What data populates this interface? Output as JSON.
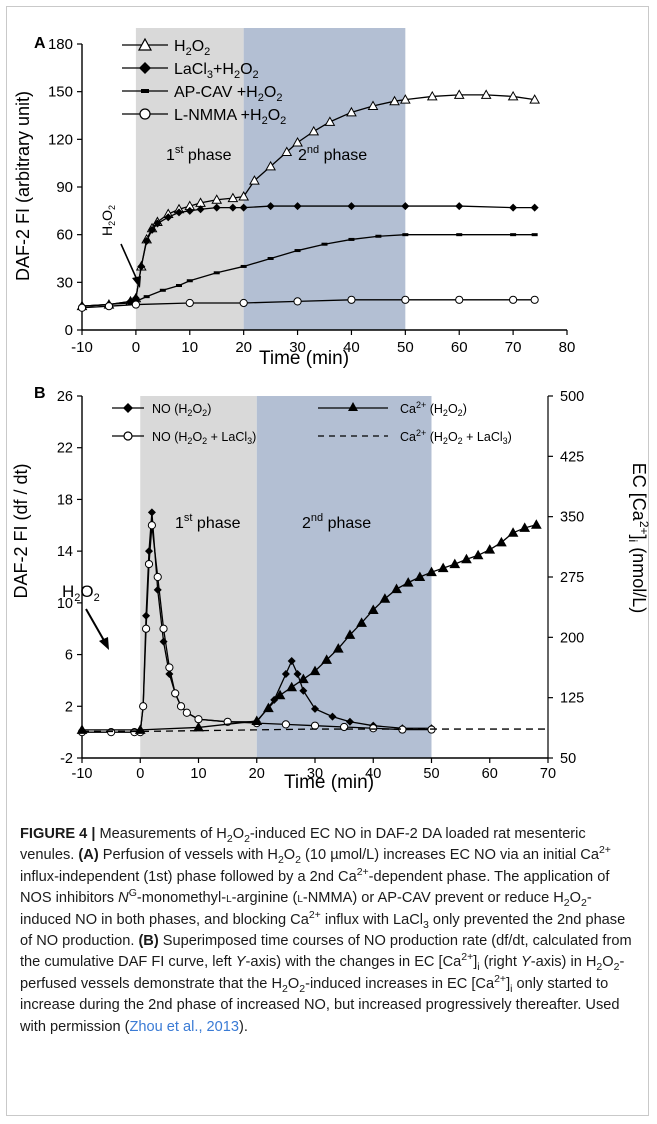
{
  "figure": {
    "panel_a": {
      "label": "A",
      "ylabel": "DAF-2 FI (arbitrary unit)",
      "xlabel": "Time (min)",
      "arrow_label": "H2O2",
      "phase1_label": "1st phase",
      "phase2_label": "2nd phase",
      "legend": [
        "H2O2",
        "LaCl3+H2O2",
        "AP-CAV +H2O2",
        "L-NMMA +H2O2"
      ]
    },
    "panel_b": {
      "label": "B",
      "ylabel_left": "DAF-2 FI (df / dt)",
      "ylabel_right": "EC [Ca2+]i (nmol/L)",
      "xlabel": "Time (min)",
      "arrow_label": "H2O2",
      "phase1_label": "1st phase",
      "phase2_label": "2nd phase",
      "legend": [
        "NO (H2O2)",
        "NO (H2O2 + LaCl3)",
        "Ca2+ (H2O2)",
        "Ca2+ (H2O2 + LaCl3)"
      ]
    }
  },
  "chart_data": [
    {
      "type": "line",
      "panel": "A",
      "title": "",
      "xlabel": "Time (min)",
      "ylabel": "DAF-2 FI (arbitrary unit)",
      "xlim": [
        -10,
        80
      ],
      "ylim": [
        0,
        180
      ],
      "xticks": [
        -10,
        0,
        10,
        20,
        30,
        40,
        50,
        60,
        70,
        80
      ],
      "yticks": [
        0,
        30,
        60,
        90,
        120,
        150,
        180
      ],
      "shaded_regions": [
        {
          "label": "1st phase",
          "from": 0,
          "to": 20,
          "color": "#d9d9d9"
        },
        {
          "label": "2nd phase",
          "from": 20,
          "to": 50,
          "color": "#b3bfd3"
        }
      ],
      "legend_position": "top-left",
      "series": [
        {
          "name": "H2O2",
          "marker": "triangle-open",
          "x": [
            -10,
            -5,
            -1,
            0,
            1,
            2,
            3,
            4,
            6,
            8,
            10,
            12,
            15,
            18,
            20,
            22,
            25,
            28,
            30,
            33,
            36,
            40,
            44,
            48,
            50,
            55,
            60,
            65,
            70,
            74
          ],
          "y": [
            15,
            16,
            18,
            20,
            40,
            57,
            64,
            68,
            73,
            76,
            78,
            80,
            82,
            83,
            84,
            94,
            103,
            112,
            118,
            125,
            131,
            137,
            141,
            144,
            145,
            147,
            148,
            148,
            147,
            145
          ]
        },
        {
          "name": "LaCl3+H2O2",
          "marker": "diamond-filled",
          "x": [
            -10,
            -5,
            -1,
            0,
            1,
            2,
            3,
            4,
            6,
            8,
            10,
            12,
            15,
            18,
            20,
            25,
            30,
            40,
            50,
            60,
            70,
            74
          ],
          "y": [
            15,
            16,
            18,
            20,
            40,
            56,
            63,
            67,
            71,
            74,
            75,
            76,
            77,
            77,
            77,
            78,
            78,
            78,
            78,
            78,
            77,
            77
          ]
        },
        {
          "name": "AP-CAV +H2O2",
          "marker": "dash",
          "x": [
            -10,
            -1,
            0,
            2,
            5,
            8,
            10,
            15,
            20,
            25,
            30,
            35,
            40,
            45,
            50,
            60,
            70,
            74
          ],
          "y": [
            15,
            17,
            18,
            21,
            25,
            28,
            31,
            36,
            40,
            45,
            50,
            54,
            57,
            59,
            60,
            60,
            60,
            60
          ]
        },
        {
          "name": "L-NMMA +H2O2",
          "marker": "circle-open",
          "x": [
            -10,
            -5,
            0,
            10,
            20,
            30,
            40,
            50,
            60,
            70,
            74
          ],
          "y": [
            14,
            15,
            16,
            17,
            17,
            18,
            19,
            19,
            19,
            19,
            19
          ]
        }
      ]
    },
    {
      "type": "line",
      "panel": "B",
      "title": "",
      "xlabel": "Time (min)",
      "ylabel": "DAF-2 FI (df / dt)",
      "ylabel_right": "EC [Ca2+]i (nmol/L)",
      "xlim": [
        -10,
        70
      ],
      "ylim": [
        -2,
        26
      ],
      "ylim_right": [
        50,
        500
      ],
      "xticks": [
        -10,
        0,
        10,
        20,
        30,
        40,
        50,
        60,
        70
      ],
      "yticks": [
        -2,
        2,
        6,
        10,
        14,
        18,
        22,
        26
      ],
      "yticks_right": [
        50,
        125,
        200,
        275,
        350,
        425,
        500
      ],
      "shaded_regions": [
        {
          "label": "1st phase",
          "from": 0,
          "to": 20,
          "color": "#d9d9d9"
        },
        {
          "label": "2nd phase",
          "from": 20,
          "to": 50,
          "color": "#b3bfd3"
        }
      ],
      "legend_position": "top",
      "series": [
        {
          "name": "NO (H2O2)",
          "axis": "left",
          "marker": "diamond-filled",
          "x": [
            -10,
            -5,
            -1,
            0,
            0.5,
            1,
            1.5,
            2,
            3,
            4,
            5,
            6,
            7,
            8,
            10,
            15,
            20,
            23,
            25,
            26,
            27,
            28,
            30,
            33,
            36,
            40,
            45,
            50
          ],
          "y": [
            0,
            0,
            0,
            0,
            2,
            9,
            14,
            17,
            11,
            7,
            4.5,
            3,
            2,
            1.5,
            1,
            0.8,
            0.8,
            2.5,
            4.5,
            5.5,
            4.5,
            3.2,
            1.8,
            1.2,
            0.8,
            0.5,
            0.3,
            0.3
          ]
        },
        {
          "name": "NO (H2O2 + LaCl3)",
          "axis": "left",
          "marker": "circle-open",
          "x": [
            -10,
            -5,
            -1,
            0,
            0.5,
            1,
            1.5,
            2,
            3,
            4,
            5,
            6,
            7,
            8,
            10,
            15,
            20,
            25,
            30,
            35,
            40,
            45,
            50
          ],
          "y": [
            0,
            0,
            0,
            0,
            2,
            8,
            13,
            16,
            12,
            8,
            5,
            3,
            2,
            1.5,
            1,
            0.8,
            0.7,
            0.6,
            0.5,
            0.4,
            0.3,
            0.2,
            0.2
          ]
        },
        {
          "name": "Ca2+ (H2O2)",
          "axis": "right",
          "marker": "triangle-filled",
          "x": [
            -10,
            0,
            10,
            20,
            22,
            24,
            26,
            28,
            30,
            32,
            34,
            36,
            38,
            40,
            42,
            44,
            46,
            48,
            50,
            52,
            54,
            56,
            58,
            60,
            62,
            64,
            66,
            68
          ],
          "y": [
            85,
            85,
            88,
            96,
            112,
            128,
            138,
            148,
            158,
            172,
            186,
            203,
            218,
            234,
            248,
            260,
            268,
            275,
            281,
            286,
            291,
            297,
            302,
            309,
            318,
            330,
            336,
            340
          ]
        },
        {
          "name": "Ca2+ (H2O2 + LaCl3)",
          "axis": "right",
          "marker": "dash",
          "x": [
            -10,
            0,
            10,
            20,
            30,
            40,
            50,
            60,
            70
          ],
          "y": [
            83,
            83,
            84,
            85,
            86,
            86,
            86,
            86,
            86
          ]
        }
      ]
    }
  ]
}
